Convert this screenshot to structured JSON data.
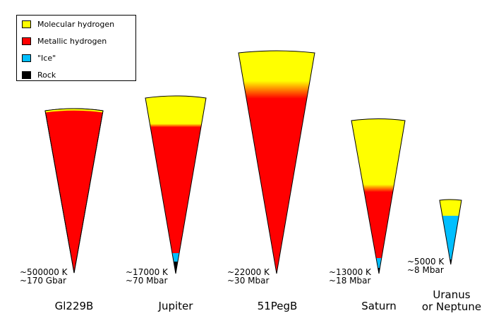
{
  "colors": {
    "molecular_hydrogen": "#ffff00",
    "metallic_hydrogen": "#ff0000",
    "ice": "#00bfff",
    "rock": "#000000"
  },
  "legend": [
    {
      "label": "Molecular hydrogen",
      "color": "#ffff00"
    },
    {
      "label": "Metallic hydrogen",
      "color": "#ff0000"
    },
    {
      "label": "\"Ice\"",
      "color": "#00bfff"
    },
    {
      "label": "Rock",
      "color": "#000000"
    }
  ],
  "planets": [
    {
      "name": "Gl229B",
      "temperature": "~500000 K",
      "pressure": "~170 Gbar"
    },
    {
      "name": "Jupiter",
      "temperature": "~17000 K",
      "pressure": "~70 Mbar"
    },
    {
      "name": "51PegB",
      "temperature": "~22000 K",
      "pressure": "~30 Mbar"
    },
    {
      "name": "Saturn",
      "temperature": "~13000 K",
      "pressure": "~18 Mbar"
    },
    {
      "name_line1": "Uranus",
      "name_line2": "or Neptune",
      "temperature": "~5000 K",
      "pressure": "~8 Mbar"
    }
  ]
}
